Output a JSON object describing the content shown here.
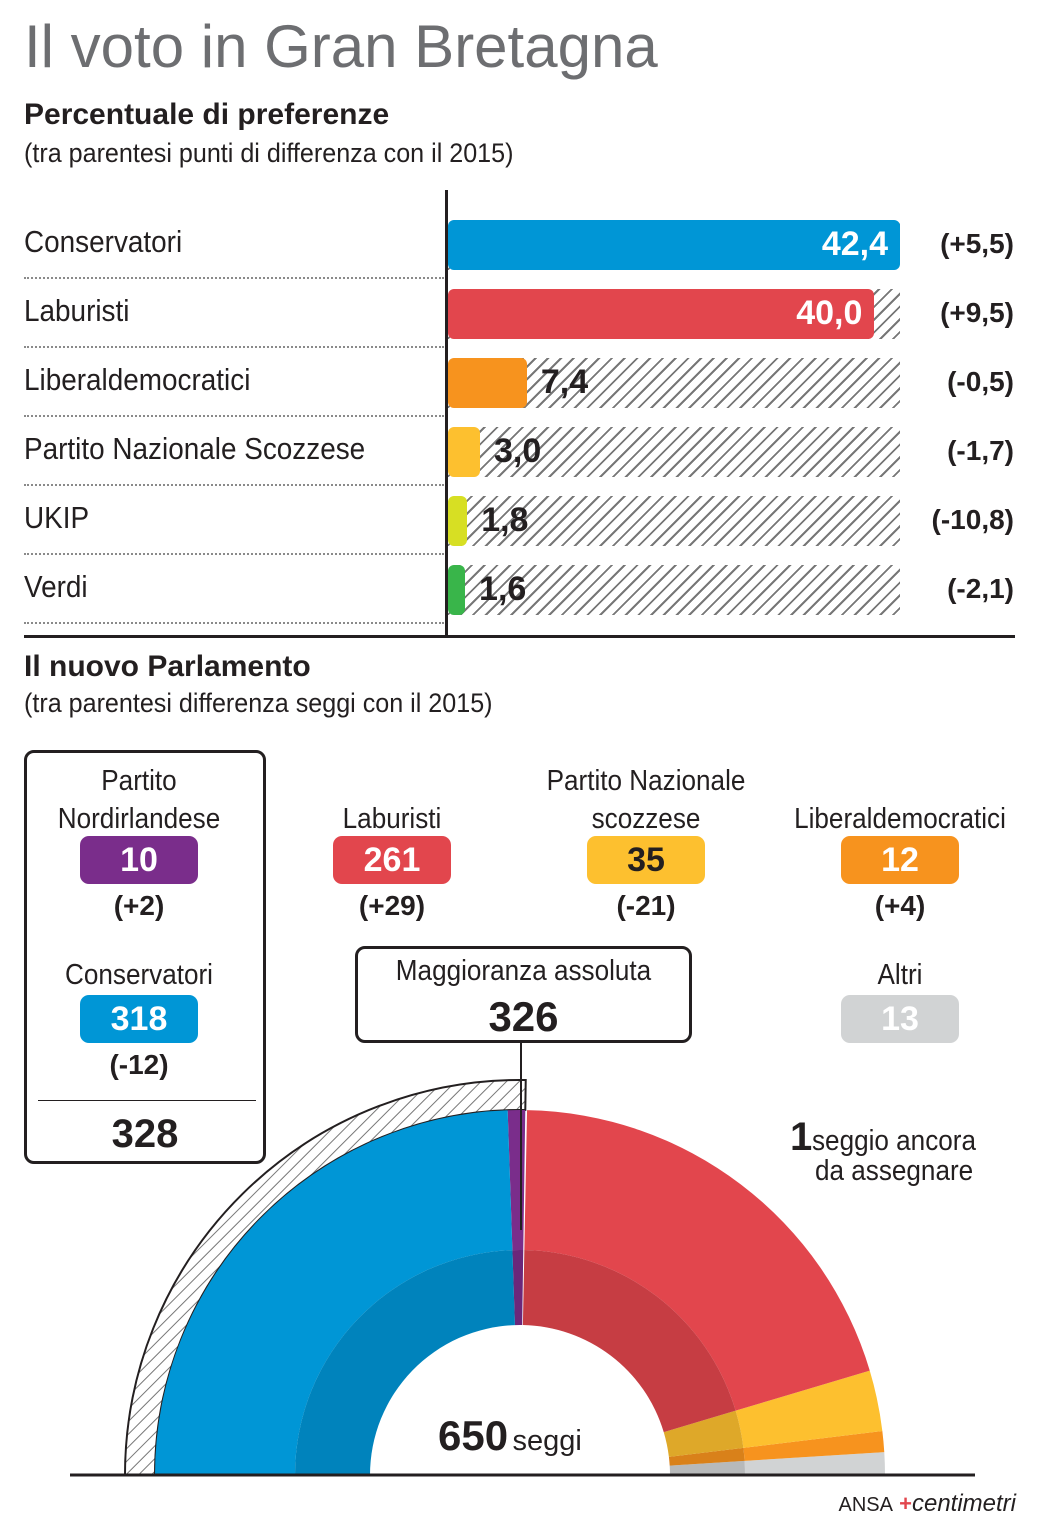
{
  "title": "Il voto in Gran Bretagna",
  "section1": {
    "title": "Percentuale di preferenze",
    "subtitle": "(tra parentesi punti di differenza con il 2015)"
  },
  "chart_data": [
    {
      "type": "bar",
      "orientation": "horizontal",
      "title": "Percentuale di preferenze",
      "subtitle": "(tra parentesi punti di differenza con il 2015)",
      "xlim": [
        0,
        42.4
      ],
      "background": "hatched",
      "categories": [
        "Conservatori",
        "Laburisti",
        "Liberaldemocratici",
        "Partito Nazionale Scozzese",
        "UKIP",
        "Verdi"
      ],
      "values": [
        42.4,
        40.0,
        7.4,
        3.0,
        1.8,
        1.6
      ],
      "value_labels": [
        "42,4",
        "40,0",
        "7,4",
        "3,0",
        "1,8",
        "1,6"
      ],
      "diff_labels": [
        "(+5,5)",
        "(+9,5)",
        "(-0,5)",
        "(-1,7)",
        "(-10,8)",
        "(-2,1)"
      ],
      "colors": [
        "#0096d6",
        "#e2464d",
        "#f7931e",
        "#fdc02f",
        "#d7df23",
        "#39b54a"
      ]
    },
    {
      "type": "semicircle",
      "title": "Il nuovo Parlamento",
      "subtitle": "(tra parentesi differenza seggi con il 2015)",
      "total": 650,
      "majority": 326,
      "order": [
        "Altri",
        "Liberaldemocratici",
        "Partito Nazionale scozzese",
        "Laburisti",
        "Partito Nordirlandese",
        "Conservatori"
      ],
      "seats": [
        13,
        12,
        35,
        261,
        10,
        318
      ],
      "unassigned": 1,
      "colors": [
        "#d1d3d4",
        "#f7931e",
        "#fdc02f",
        "#e2464d",
        "#7a2d8b",
        "#0096d6"
      ]
    }
  ],
  "section2": {
    "title": "Il nuovo Parlamento",
    "subtitle": "(tra parentesi differenza seggi con il 2015)"
  },
  "parliament": {
    "parties": [
      {
        "name": "Partito\nNordirlandese",
        "seats": "10",
        "diff": "(+2)",
        "color": "#7a2d8b"
      },
      {
        "name": "Laburisti",
        "seats": "261",
        "diff": "(+29)",
        "color": "#e2464d"
      },
      {
        "name": "Partito Nazionale\nscozzese",
        "seats": "35",
        "diff": "(-21)",
        "color": "#fdc02f"
      },
      {
        "name": "Liberaldemocratici",
        "seats": "12",
        "diff": "(+4)",
        "color": "#f7931e"
      },
      {
        "name": "Conservatori",
        "seats": "318",
        "diff": "(-12)",
        "color": "#0096d6"
      },
      {
        "name": "Altri",
        "seats": "13",
        "diff": "",
        "color": "#d1d3d4"
      }
    ],
    "coalition_total": "328",
    "majority_label": "Maggioranza assoluta",
    "majority_value": "326",
    "unassigned_number": "1",
    "unassigned_text_1": "seggio ancora",
    "unassigned_text_2": "da assegnare",
    "total_number": "650",
    "total_label": "seggi"
  },
  "footer": {
    "ansa": "ANSA",
    "brand": "centimetri"
  }
}
